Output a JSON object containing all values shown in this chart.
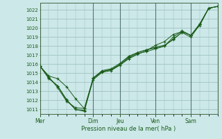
{
  "xlabel": "Pression niveau de la mer( hPa )",
  "background_color": "#cce8e8",
  "plot_bg_color": "#cce8e8",
  "grid_color": "#99bbbb",
  "line_color": "#1a5c1a",
  "marker_color": "#1a5c1a",
  "ylim": [
    1010.5,
    1022.8
  ],
  "yticks": [
    1011,
    1012,
    1013,
    1014,
    1015,
    1016,
    1017,
    1018,
    1019,
    1020,
    1021,
    1022
  ],
  "x_day_labels": [
    "Mer",
    "Dim",
    "Jeu",
    "Ven",
    "Sam"
  ],
  "x_day_positions": [
    0,
    18,
    27,
    39,
    51
  ],
  "xlim": [
    0,
    60
  ],
  "series": [
    {
      "x": [
        0,
        3,
        6,
        9,
        12,
        15,
        18,
        21,
        24,
        27,
        30,
        33,
        36,
        39,
        42,
        45,
        48,
        51,
        54,
        57,
        60
      ],
      "y": [
        1015.8,
        1014.7,
        1014.4,
        1013.5,
        1012.2,
        1011.1,
        1014.5,
        1015.2,
        1015.4,
        1016.0,
        1016.8,
        1017.3,
        1017.6,
        1017.8,
        1018.0,
        1019.0,
        1019.7,
        1019.2,
        1020.3,
        1022.2,
        1022.4
      ]
    },
    {
      "x": [
        0,
        3,
        6,
        9,
        12,
        15,
        18,
        21,
        24,
        27,
        30,
        33,
        36,
        39,
        42,
        45,
        48,
        51,
        54,
        57,
        60
      ],
      "y": [
        1015.8,
        1014.5,
        1013.6,
        1012.1,
        1011.0,
        1010.9,
        1014.3,
        1015.1,
        1015.3,
        1015.9,
        1016.6,
        1017.1,
        1017.5,
        1018.1,
        1018.5,
        1019.3,
        1019.6,
        1019.2,
        1020.5,
        1022.2,
        1022.4
      ]
    },
    {
      "x": [
        0,
        3,
        6,
        9,
        12,
        15,
        18,
        21,
        24,
        27,
        30,
        33,
        36,
        39,
        42,
        45,
        48,
        51,
        54,
        57,
        60
      ],
      "y": [
        1015.8,
        1014.6,
        1013.4,
        1011.9,
        1011.2,
        1011.1,
        1014.4,
        1015.2,
        1015.4,
        1015.9,
        1016.7,
        1017.2,
        1017.4,
        1017.7,
        1018.0,
        1018.8,
        1019.5,
        1019.0,
        1020.4,
        1022.2,
        1022.4
      ]
    },
    {
      "x": [
        0,
        3,
        6,
        9,
        12,
        15,
        18,
        21,
        24,
        27,
        30,
        33,
        36,
        39,
        42,
        45,
        48,
        51,
        54,
        57,
        60
      ],
      "y": [
        1015.8,
        1014.4,
        1013.6,
        1012.0,
        1011.0,
        1010.8,
        1014.5,
        1015.3,
        1015.5,
        1016.1,
        1016.9,
        1017.3,
        1017.6,
        1017.9,
        1018.1,
        1018.7,
        1019.6,
        1019.2,
        1020.4,
        1022.2,
        1022.4
      ]
    }
  ]
}
